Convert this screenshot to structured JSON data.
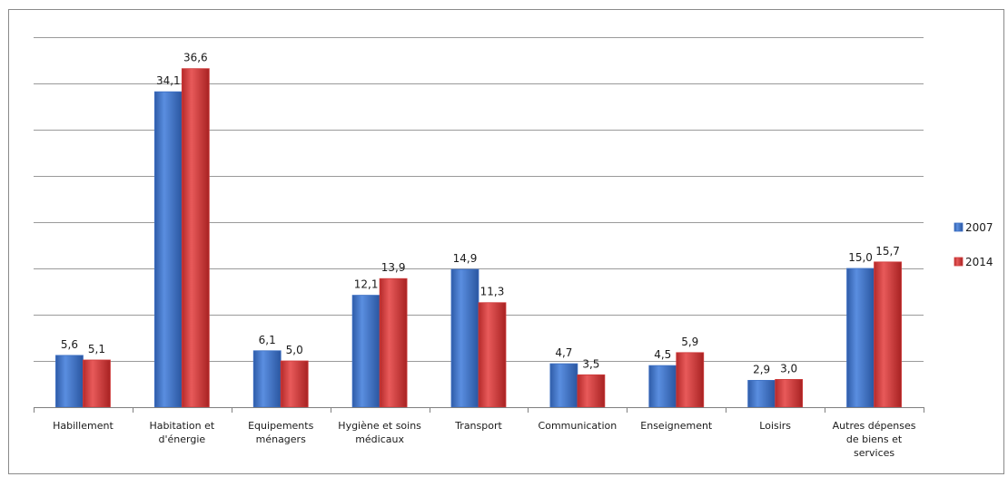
{
  "colors": {
    "series_2007": "#3c6fc4",
    "series_2014": "#cf3b3b",
    "grid": "#9a9a9a",
    "axis": "#808080"
  },
  "chart_data": {
    "type": "bar",
    "title": "",
    "xlabel": "",
    "ylabel": "",
    "ylim": [
      0,
      40
    ],
    "grid": true,
    "legend_position": "right",
    "value_format": "comma-decimal",
    "categories": [
      [
        "Habillement"
      ],
      [
        "Habitation et",
        "d'énergie"
      ],
      [
        "Equipements",
        "ménagers"
      ],
      [
        "Hygiène et soins",
        "médicaux"
      ],
      [
        "Transport"
      ],
      [
        "Communication"
      ],
      [
        "Enseignement"
      ],
      [
        "Loisirs"
      ],
      [
        "Autres dépenses",
        "de biens et",
        "services"
      ]
    ],
    "series": [
      {
        "name": "2007",
        "values": [
          5.6,
          34.1,
          6.1,
          12.1,
          14.9,
          4.7,
          4.5,
          2.9,
          15.0
        ]
      },
      {
        "name": "2014",
        "values": [
          5.1,
          36.6,
          5.0,
          13.9,
          11.3,
          3.5,
          5.9,
          3.0,
          15.7
        ]
      }
    ]
  }
}
